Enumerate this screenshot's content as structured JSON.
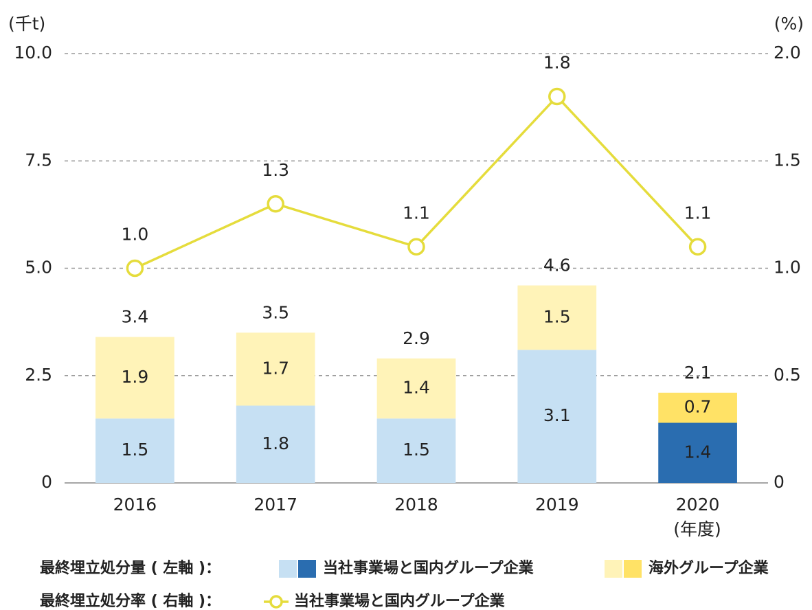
{
  "chart_data": {
    "type": "bar",
    "y_unit": "(千t)",
    "y2_unit": "(%)",
    "x_label": "(年度)",
    "categories": [
      "2016",
      "2017",
      "2018",
      "2019",
      "2020"
    ],
    "series": [
      {
        "name": "当社事業場と国内グループ企業",
        "colors": [
          "#c6e0f3",
          "#c6e0f3",
          "#c6e0f3",
          "#c6e0f3",
          "#2a6db0"
        ],
        "values": [
          1.5,
          1.8,
          1.5,
          3.1,
          1.4
        ]
      },
      {
        "name": "海外グループ企業",
        "colors": [
          "#fff3b8",
          "#fff3b8",
          "#fff3b8",
          "#fff3b8",
          "#ffe266"
        ],
        "values": [
          1.9,
          1.7,
          1.4,
          1.5,
          0.7
        ]
      },
      {
        "name": "当社事業場と国内グループ企業",
        "type": "line",
        "axis": "y2",
        "color": "#e5dc3c",
        "values": [
          1.0,
          1.3,
          1.1,
          1.8,
          1.1
        ],
        "value_labels": [
          "1.0",
          "1.3",
          "1.1",
          "1.8",
          "1.1"
        ]
      }
    ],
    "totals": [
      3.4,
      3.5,
      2.9,
      4.6,
      2.1
    ],
    "legend_groups": [
      "最終埋立処分量 ( 左軸 )：",
      "最終埋立処分率 ( 右軸 )："
    ],
    "ylim": [
      0,
      10
    ],
    "yticks": [
      0,
      2.5,
      {
        "value": 5,
        "label": "5.0"
      },
      7.5,
      {
        "value": 10,
        "label": "10.0"
      }
    ],
    "y2lim": [
      0,
      2
    ],
    "y2ticks": [
      0,
      0.5,
      {
        "value": 1,
        "label": "1.0"
      },
      1.5,
      {
        "value": 2,
        "label": "2.0"
      }
    ],
    "grid": true
  }
}
